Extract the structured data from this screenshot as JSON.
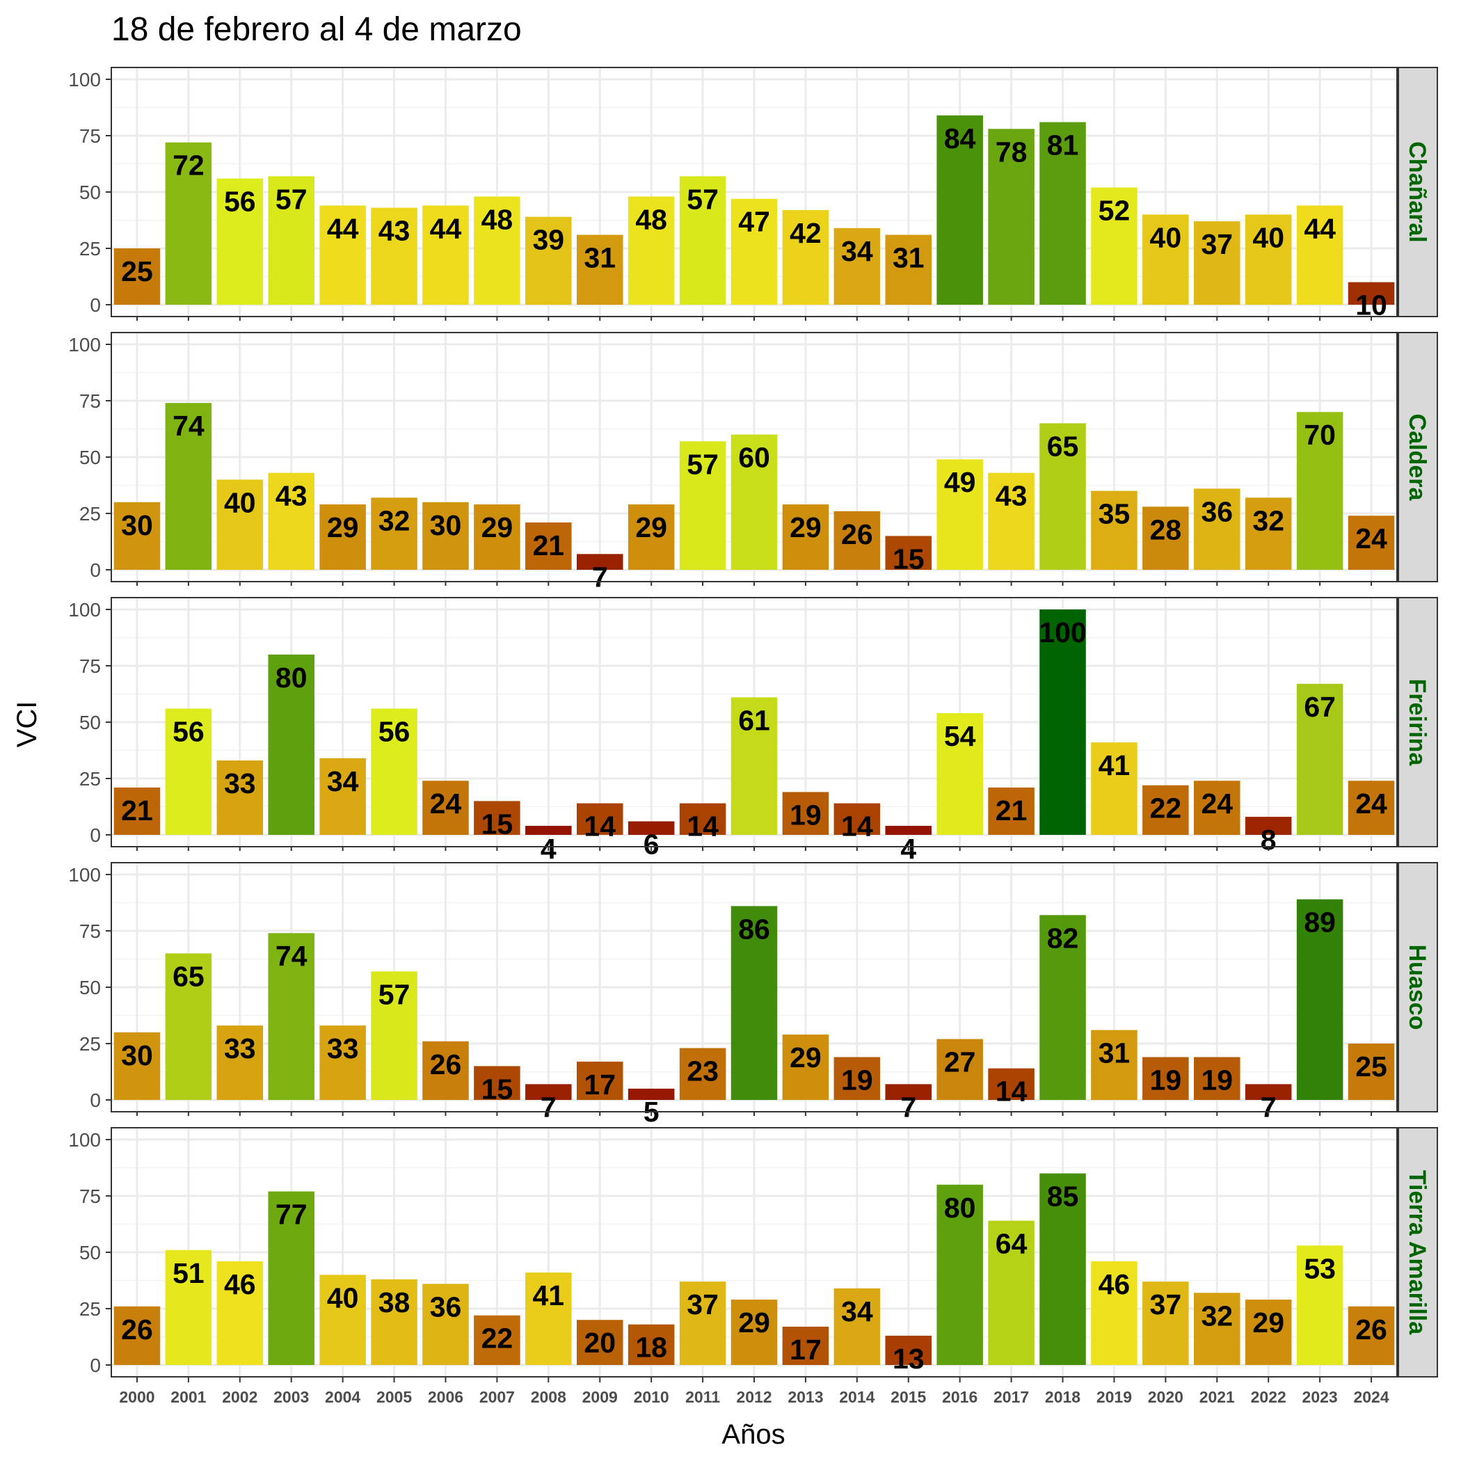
{
  "chart_data": {
    "type": "bar",
    "title": "18 de febrero al 4 de marzo",
    "xlabel": "Años",
    "ylabel": "VCI",
    "ylim": [
      0,
      100
    ],
    "yticks": [
      "0",
      "25",
      "50",
      "75",
      "100"
    ],
    "grid": true,
    "categories": [
      "2000",
      "2001",
      "2002",
      "2003",
      "2004",
      "2005",
      "2006",
      "2007",
      "2008",
      "2009",
      "2010",
      "2011",
      "2012",
      "2013",
      "2014",
      "2015",
      "2016",
      "2017",
      "2018",
      "2019",
      "2020",
      "2021",
      "2022",
      "2023",
      "2024"
    ],
    "strip_color": "#006400",
    "color_scale": [
      "#8b0000",
      "#a33500",
      "#bf6c08",
      "#d8a511",
      "#f0df1e",
      "#dfed1c",
      "#a9c916",
      "#6aa70f",
      "#338208",
      "#006400"
    ],
    "panels": [
      {
        "name": "Chañaral",
        "values": [
          25,
          72,
          56,
          57,
          44,
          43,
          44,
          48,
          39,
          31,
          48,
          57,
          47,
          42,
          34,
          31,
          84,
          78,
          81,
          52,
          40,
          37,
          40,
          44,
          10
        ]
      },
      {
        "name": "Caldera",
        "values": [
          30,
          74,
          40,
          43,
          29,
          32,
          30,
          29,
          21,
          7,
          29,
          57,
          60,
          29,
          26,
          15,
          49,
          43,
          65,
          35,
          28,
          36,
          32,
          70,
          24
        ]
      },
      {
        "name": "Freirina",
        "values": [
          21,
          56,
          33,
          80,
          34,
          56,
          24,
          15,
          4,
          14,
          6,
          14,
          61,
          19,
          14,
          4,
          54,
          21,
          100,
          41,
          22,
          24,
          8,
          67,
          24
        ]
      },
      {
        "name": "Huasco",
        "values": [
          30,
          65,
          33,
          74,
          33,
          57,
          26,
          15,
          7,
          17,
          5,
          23,
          86,
          29,
          19,
          7,
          27,
          14,
          82,
          31,
          19,
          19,
          7,
          89,
          25
        ]
      },
      {
        "name": "Tierra Amarilla",
        "values": [
          26,
          51,
          46,
          77,
          40,
          38,
          36,
          22,
          41,
          20,
          18,
          37,
          29,
          17,
          34,
          13,
          80,
          64,
          85,
          46,
          37,
          32,
          29,
          53,
          26
        ]
      }
    ]
  }
}
